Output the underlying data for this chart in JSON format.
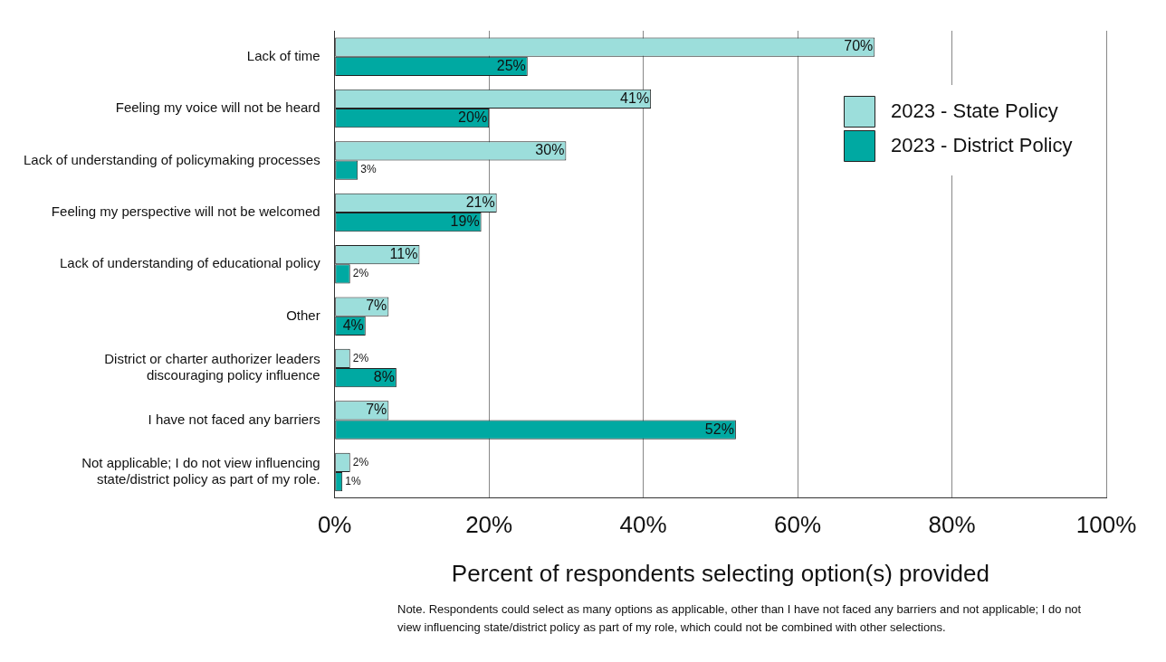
{
  "chart_data": {
    "type": "bar",
    "orientation": "horizontal",
    "xlabel": "Percent of respondents selecting option(s) provided",
    "categories": [
      "Lack of time",
      "Feeling my voice will not be heard",
      "Lack of understanding of policymaking processes",
      "Feeling my perspective will not be welcomed",
      "Lack of understanding of educational policy",
      "Other",
      "District or charter authorizer leaders discouraging policy influence",
      "I have not faced any barriers",
      "Not applicable; I do not view influencing state/district policy as part of my role."
    ],
    "series": [
      {
        "name": "2023 - State Policy",
        "color": "#9cdedb",
        "values": [
          70,
          41,
          30,
          21,
          11,
          7,
          2,
          7,
          2
        ],
        "value_labels": [
          "70%",
          "41%",
          "30%",
          "21%",
          "11%",
          "7%",
          "2%",
          "7%",
          "2%"
        ]
      },
      {
        "name": "2023 - District Policy",
        "color": "#00a9a2",
        "values": [
          25,
          20,
          3,
          19,
          2,
          4,
          8,
          52,
          1
        ],
        "value_labels": [
          "25%",
          "20%",
          "3%",
          "19%",
          "2%",
          "4%",
          "8%",
          "52%",
          "1%"
        ]
      }
    ],
    "xlim": [
      0,
      100
    ],
    "xticks": [
      {
        "value": 0,
        "label": "0%"
      },
      {
        "value": 20,
        "label": "20%"
      },
      {
        "value": 40,
        "label": "40%"
      },
      {
        "value": 60,
        "label": "60%"
      },
      {
        "value": 80,
        "label": "80%"
      },
      {
        "value": 100,
        "label": "100%"
      }
    ],
    "grid": "x",
    "legend": "top right",
    "annotations": [
      "Note. Respondents could select as many options as applicable, other than I have not faced any barriers and not applicable; I do not view influencing state/district policy as part of my role, which could not be combined with other selections."
    ]
  }
}
